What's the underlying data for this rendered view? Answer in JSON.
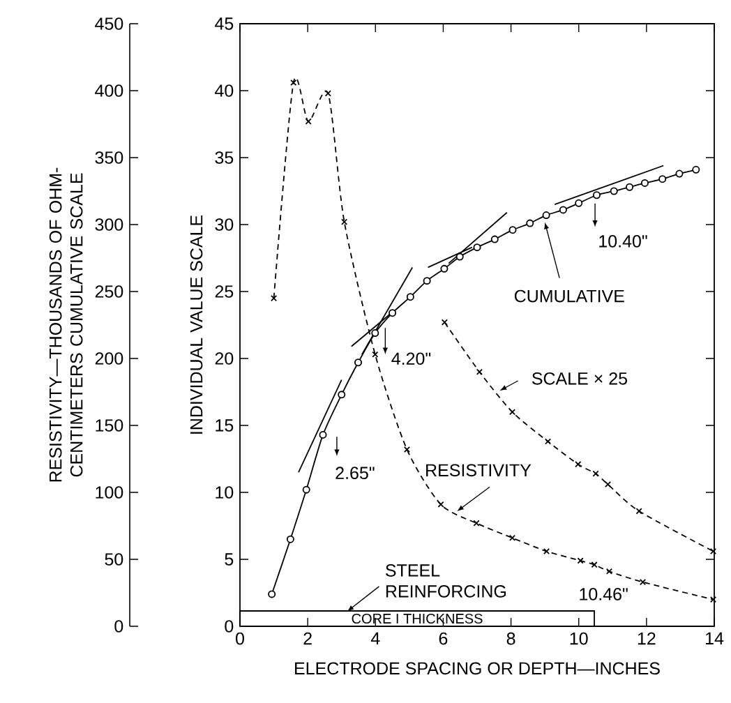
{
  "chart_data": {
    "type": "line",
    "xlabel": "ELECTRODE SPACING OR DEPTH—INCHES",
    "ylabel": "INDIVIDUAL VALUE SCALE",
    "y2label": "RESISTIVITY—THOUSANDS OF OHM-CENTIMETERS CUMULATIVE SCALE",
    "xlim": [
      0,
      14
    ],
    "xticks": [
      0,
      2,
      4,
      6,
      8,
      10,
      12,
      14
    ],
    "ylim": [
      0,
      45
    ],
    "yticks": [
      0,
      5,
      10,
      15,
      20,
      25,
      30,
      35,
      40,
      45
    ],
    "y2lim": [
      0,
      450
    ],
    "y2ticks": [
      0,
      50,
      100,
      150,
      200,
      250,
      300,
      350,
      400,
      450
    ],
    "series": [
      {
        "name": "CUMULATIVE",
        "axis": "y2",
        "color": "#000000",
        "marker": "circle",
        "line_style": "solid",
        "x": [
          0.94,
          1.49,
          1.96,
          2.45,
          3.0,
          3.49,
          3.99,
          4.5,
          5.03,
          5.52,
          6.03,
          6.49,
          7.0,
          7.52,
          8.05,
          8.56,
          9.04,
          9.54,
          10.0,
          10.53,
          11.04,
          11.5,
          11.95,
          12.47,
          12.97,
          13.46
        ],
        "values": [
          24,
          65,
          102,
          143,
          173,
          197,
          219,
          234,
          246,
          258,
          267,
          276,
          283,
          289,
          296,
          301,
          307,
          311,
          316,
          322,
          325,
          328,
          331,
          334,
          338,
          341
        ]
      },
      {
        "name": "RESISTIVITY",
        "color": "#000000",
        "marker": "cross",
        "line_style": "dashed",
        "x": [
          1.0,
          1.58,
          2.02,
          2.6,
          3.08,
          3.99,
          4.93,
          5.93,
          6.98,
          8.04,
          9.05,
          10.05,
          10.46,
          10.9,
          11.89,
          13.97
        ],
        "values": [
          24.5,
          40.6,
          37.7,
          39.8,
          30.2,
          20.3,
          13.2,
          9.1,
          7.7,
          6.6,
          5.6,
          4.9,
          4.6,
          4.1,
          3.3,
          2.0
        ]
      },
      {
        "name": "SCALE × 25",
        "color": "#000000",
        "marker": "cross",
        "line_style": "dashed",
        "x": [
          6.04,
          7.07,
          8.04,
          9.09,
          9.98,
          10.5,
          10.86,
          11.78,
          13.97
        ],
        "values": [
          22.7,
          19.0,
          16.0,
          13.8,
          12.1,
          11.4,
          10.6,
          8.6,
          5.6
        ]
      },
      {
        "axis": "y2",
        "color": "#000000",
        "marker": "none",
        "line_style": "solid",
        "x": [
          1.73,
          3.0
        ],
        "values": [
          115,
          184
        ]
      },
      {
        "axis": "y2",
        "color": "#000000",
        "marker": "none",
        "line_style": "solid",
        "x": [
          3.6,
          5.09
        ],
        "values": [
          203,
          268
        ]
      },
      {
        "axis": "y2",
        "color": "#000000",
        "marker": "none",
        "line_style": "solid",
        "x": [
          3.29,
          4.47
        ],
        "values": [
          209,
          234
        ]
      },
      {
        "axis": "y2",
        "color": "#000000",
        "marker": "none",
        "line_style": "solid",
        "x": [
          5.55,
          6.85
        ],
        "values": [
          268,
          283
        ]
      },
      {
        "axis": "y2",
        "color": "#000000",
        "marker": "none",
        "line_style": "solid",
        "x": [
          6.16,
          7.88
        ],
        "values": [
          271,
          309
        ]
      },
      {
        "axis": "y2",
        "color": "#000000",
        "marker": "none",
        "line_style": "solid",
        "x": [
          9.29,
          12.5
        ],
        "values": [
          315,
          344
        ]
      }
    ],
    "annotations": [
      "2.65\"",
      "4.20\"",
      "10.40\"",
      "10.46\"",
      "STEEL REINFORCING",
      "CORE I THICKNESS"
    ]
  }
}
